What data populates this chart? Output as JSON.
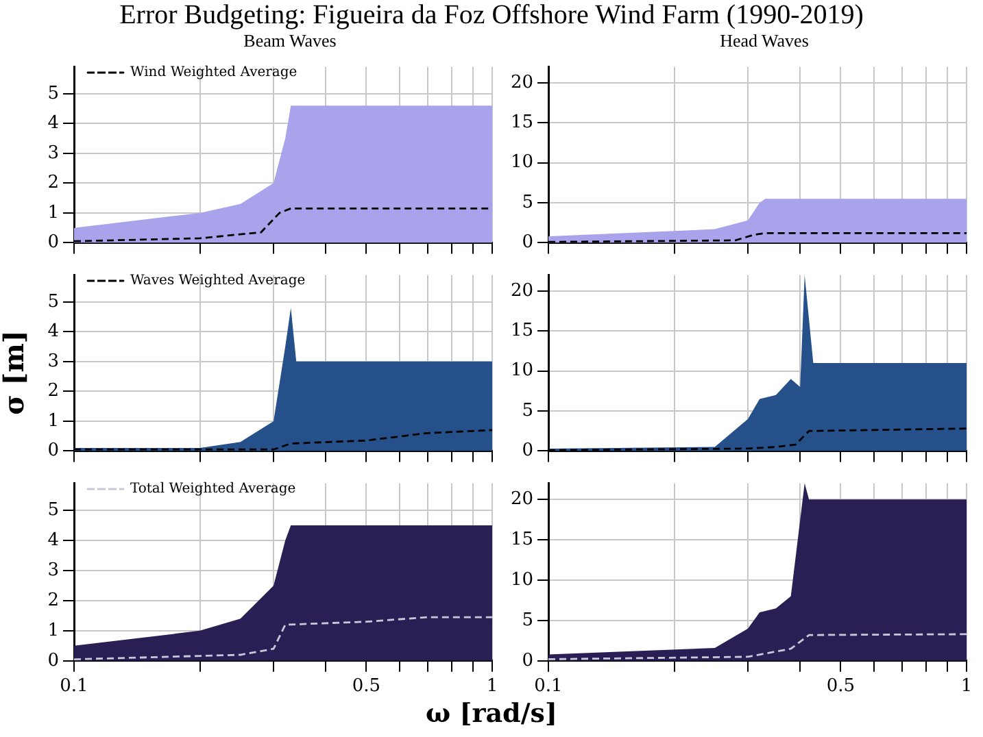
{
  "chart_data": [
    {
      "type": "area",
      "title": "Error Budgeting: Figueira da Foz Offshore Wind Farm (1990-2019)",
      "subtitle": "Beam Waves",
      "log": "x",
      "grid": true,
      "legend": "top left",
      "tick_labels": "y",
      "xlim": [
        0.1,
        1
      ],
      "xticks": [
        0.1,
        {
          "value": 0.2,
          "label": null
        },
        {
          "value": 0.3,
          "label": null
        },
        {
          "value": 0.4,
          "label": null
        },
        0.5,
        {
          "value": 0.6,
          "label": null
        },
        {
          "value": 0.7,
          "label": null
        },
        {
          "value": 0.8,
          "label": null
        },
        {
          "value": 0.9,
          "label": null
        },
        1
      ],
      "ylim": [
        0,
        5.9
      ],
      "yticks": [
        0,
        1,
        2,
        3,
        4,
        5
      ],
      "series": [
        {
          "color": "#a9a3ec",
          "x": [
            0.1,
            0.2,
            0.25,
            0.3,
            0.32,
            0.33,
            1
          ],
          "values": [
            0.5,
            1.0,
            1.3,
            2.0,
            3.5,
            4.6,
            4.6
          ]
        },
        {
          "type": "line",
          "name": "Wind Weighted Average",
          "color": "#000000",
          "line_style": "dashed",
          "x": [
            0.1,
            0.2,
            0.28,
            0.31,
            0.33,
            1
          ],
          "values": [
            0.05,
            0.15,
            0.35,
            1.0,
            1.15,
            1.15
          ]
        }
      ]
    },
    {
      "type": "area",
      "title": "Head Waves",
      "log": "x",
      "grid": true,
      "tick_labels": "y",
      "xlim": [
        0.1,
        1
      ],
      "xticks": [
        0.1,
        {
          "value": 0.2,
          "label": null
        },
        {
          "value": 0.3,
          "label": null
        },
        {
          "value": 0.4,
          "label": null
        },
        0.5,
        {
          "value": 0.6,
          "label": null
        },
        {
          "value": 0.7,
          "label": null
        },
        {
          "value": 0.8,
          "label": null
        },
        {
          "value": 0.9,
          "label": null
        },
        1
      ],
      "ylim": [
        0,
        22
      ],
      "yticks": [
        0,
        5,
        10,
        15,
        20
      ],
      "series": [
        {
          "color": "#a9a3ec",
          "x": [
            0.1,
            0.25,
            0.3,
            0.32,
            0.33,
            1
          ],
          "values": [
            0.8,
            1.7,
            2.8,
            5.0,
            5.5,
            5.5
          ]
        },
        {
          "type": "line",
          "color": "#000000",
          "line_style": "dashed",
          "x": [
            0.1,
            0.28,
            0.31,
            0.33,
            1
          ],
          "values": [
            0.1,
            0.3,
            1.0,
            1.2,
            1.2
          ]
        }
      ]
    },
    {
      "type": "area",
      "ylabel": "σ [m]",
      "log": "x",
      "grid": true,
      "legend": "top left",
      "tick_labels": "y",
      "xlim": [
        0.1,
        1
      ],
      "xticks": [
        0.1,
        {
          "value": 0.2,
          "label": null
        },
        {
          "value": 0.3,
          "label": null
        },
        {
          "value": 0.4,
          "label": null
        },
        0.5,
        {
          "value": 0.6,
          "label": null
        },
        {
          "value": 0.7,
          "label": null
        },
        {
          "value": 0.8,
          "label": null
        },
        {
          "value": 0.9,
          "label": null
        },
        1
      ],
      "ylim": [
        0,
        5.9
      ],
      "yticks": [
        0,
        1,
        2,
        3,
        4,
        5
      ],
      "series": [
        {
          "color": "#25508a",
          "x": [
            0.1,
            0.2,
            0.25,
            0.3,
            0.32,
            0.33,
            0.34,
            1
          ],
          "values": [
            0.1,
            0.1,
            0.3,
            1.0,
            3.5,
            4.8,
            3.0,
            3.0
          ]
        },
        {
          "type": "line",
          "name": "Waves Weighted Average",
          "color": "#000000",
          "line_style": "dashed",
          "x": [
            0.1,
            0.3,
            0.33,
            0.5,
            0.7,
            1
          ],
          "values": [
            0.05,
            0.05,
            0.25,
            0.35,
            0.6,
            0.7
          ]
        }
      ]
    },
    {
      "type": "area",
      "log": "x",
      "grid": true,
      "tick_labels": "y",
      "xlim": [
        0.1,
        1
      ],
      "xticks": [
        0.1,
        {
          "value": 0.2,
          "label": null
        },
        {
          "value": 0.3,
          "label": null
        },
        {
          "value": 0.4,
          "label": null
        },
        0.5,
        {
          "value": 0.6,
          "label": null
        },
        {
          "value": 0.7,
          "label": null
        },
        {
          "value": 0.8,
          "label": null
        },
        {
          "value": 0.9,
          "label": null
        },
        1
      ],
      "ylim": [
        0,
        22
      ],
      "yticks": [
        0,
        5,
        10,
        15,
        20
      ],
      "series": [
        {
          "color": "#25508a",
          "x": [
            0.1,
            0.25,
            0.3,
            0.32,
            0.35,
            0.38,
            0.4,
            0.41,
            0.43,
            1
          ],
          "values": [
            0.3,
            0.5,
            4,
            6.5,
            7,
            9,
            8,
            22,
            11,
            11
          ]
        },
        {
          "type": "line",
          "color": "#000000",
          "line_style": "dashed",
          "x": [
            0.1,
            0.3,
            0.35,
            0.39,
            0.42,
            1
          ],
          "values": [
            0.1,
            0.3,
            0.5,
            0.8,
            2.5,
            2.8
          ]
        }
      ]
    },
    {
      "type": "area",
      "xlabel": "ω [rad/s]",
      "log": "x",
      "grid": true,
      "legend": "top left",
      "xlim": [
        0.1,
        1
      ],
      "xticks": [
        0.1,
        {
          "value": 0.2,
          "label": null
        },
        {
          "value": 0.3,
          "label": null
        },
        {
          "value": 0.4,
          "label": null
        },
        0.5,
        {
          "value": 0.6,
          "label": null
        },
        {
          "value": 0.7,
          "label": null
        },
        {
          "value": 0.8,
          "label": null
        },
        {
          "value": 0.9,
          "label": null
        },
        1
      ],
      "ylim": [
        0,
        5.9
      ],
      "yticks": [
        0,
        1,
        2,
        3,
        4,
        5
      ],
      "series": [
        {
          "color": "#2a1f55",
          "x": [
            0.1,
            0.2,
            0.25,
            0.3,
            0.32,
            0.33,
            1
          ],
          "values": [
            0.5,
            1.0,
            1.4,
            2.5,
            4.0,
            4.5,
            4.5
          ]
        },
        {
          "type": "line",
          "name": "Total Weighted Average",
          "color": "#c8c8d8",
          "line_style": "dashed",
          "x": [
            0.1,
            0.25,
            0.3,
            0.32,
            0.5,
            0.7,
            1
          ],
          "values": [
            0.05,
            0.2,
            0.4,
            1.2,
            1.3,
            1.45,
            1.45
          ]
        }
      ]
    },
    {
      "type": "area",
      "log": "x",
      "grid": true,
      "xlim": [
        0.1,
        1
      ],
      "xticks": [
        0.1,
        {
          "value": 0.2,
          "label": null
        },
        {
          "value": 0.3,
          "label": null
        },
        {
          "value": 0.4,
          "label": null
        },
        0.5,
        {
          "value": 0.6,
          "label": null
        },
        {
          "value": 0.7,
          "label": null
        },
        {
          "value": 0.8,
          "label": null
        },
        {
          "value": 0.9,
          "label": null
        },
        1
      ],
      "ylim": [
        0,
        22
      ],
      "yticks": [
        0,
        5,
        10,
        15,
        20
      ],
      "series": [
        {
          "color": "#2a1f55",
          "x": [
            0.1,
            0.25,
            0.3,
            0.32,
            0.35,
            0.38,
            0.41,
            0.42,
            1
          ],
          "values": [
            0.8,
            1.6,
            4,
            6,
            6.5,
            8,
            22,
            20,
            20
          ]
        },
        {
          "type": "line",
          "color": "#c8c8d8",
          "line_style": "dashed",
          "x": [
            0.1,
            0.3,
            0.38,
            0.42,
            1
          ],
          "values": [
            0.2,
            0.5,
            1.5,
            3.2,
            3.3
          ]
        }
      ]
    }
  ]
}
